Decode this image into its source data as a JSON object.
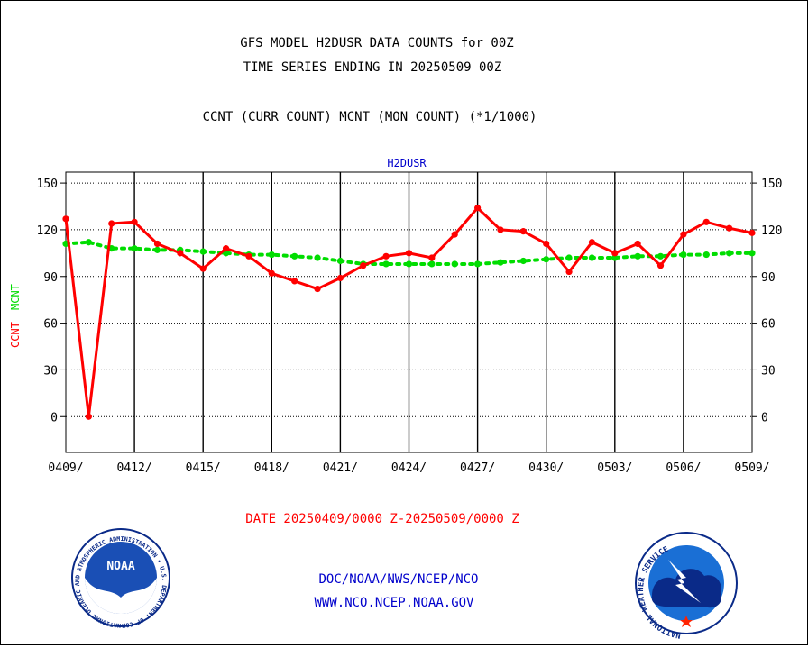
{
  "header": {
    "title_line1": "GFS MODEL H2DUSR DATA COUNTS for 00Z",
    "title_line2": "TIME SERIES ENDING IN 20250509 00Z",
    "legend_text": "CCNT (CURR COUNT) MCNT (MON COUNT) (*1/1000)"
  },
  "colors": {
    "ccnt": "#ff0000",
    "mcnt": "#00dd00",
    "panel_title": "#0000cc",
    "footer_link": "#0000cc",
    "date_text": "#ff0000"
  },
  "footer": {
    "date_range": "DATE 20250409/0000 Z-20250509/0000 Z",
    "org_path": "DOC/NOAA/NWS/NCEP/NCO",
    "website": "WWW.NCO.NCEP.NOAA.GOV",
    "noaa_logo_text": "NOAA",
    "noaa_ring_text": "NATIONAL OCEANIC AND ATMOSPHERIC ADMINISTRATION • U.S. DEPARTMENT OF COMMERCE •",
    "nws_ring_text": "NATIONAL WEATHER SERVICE"
  },
  "chart_data": {
    "type": "line",
    "title": "H2DUSR",
    "ylabel_left_1": "CCNT",
    "ylabel_left_2": "MCNT",
    "x_ticks": [
      "0409/",
      "0412/",
      "0415/",
      "0418/",
      "0421/",
      "0424/",
      "0427/",
      "0430/",
      "0503/",
      "0506/",
      "0509/"
    ],
    "y_ticks": [
      150,
      120,
      90,
      60,
      30,
      0
    ],
    "ylim": [
      -23,
      157
    ],
    "xlim": [
      0,
      30
    ],
    "grid": true,
    "x_days": [
      0,
      1,
      2,
      3,
      4,
      5,
      6,
      7,
      8,
      9,
      10,
      11,
      12,
      13,
      14,
      15,
      16,
      17,
      18,
      19,
      20,
      21,
      22,
      23,
      24,
      25,
      26,
      27,
      28,
      29,
      30
    ],
    "series": [
      {
        "name": "CCNT",
        "values": [
          127,
          0,
          124,
          125,
          111,
          105,
          95,
          108,
          103,
          92,
          87,
          82,
          89,
          97,
          103,
          105,
          102,
          117,
          134,
          120,
          119,
          111,
          93,
          112,
          105,
          111,
          97,
          117,
          125,
          121,
          118
        ]
      },
      {
        "name": "MCNT",
        "values": [
          111,
          112,
          108,
          108,
          107,
          107,
          106,
          105,
          104,
          104,
          103,
          102,
          100,
          98,
          98,
          98,
          98,
          98,
          98,
          99,
          100,
          101,
          102,
          102,
          102,
          103,
          103,
          104,
          104,
          105,
          105
        ]
      }
    ]
  }
}
